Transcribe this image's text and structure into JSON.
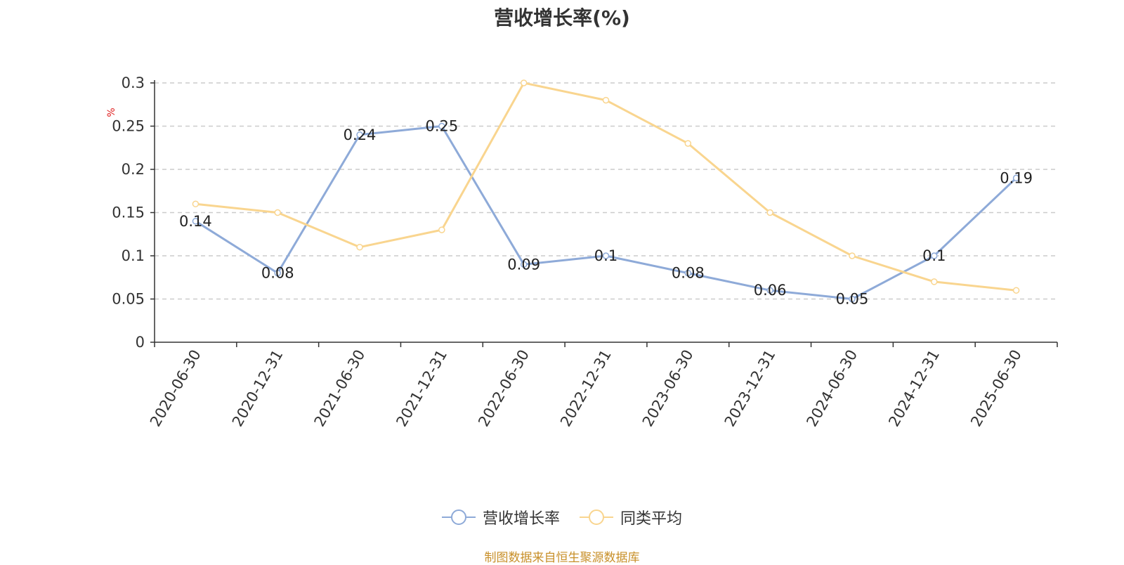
{
  "colors": {
    "series_1": "#8eaad8",
    "series_2": "#f9d58f",
    "unit": "#e02020",
    "note": "#c8902a"
  },
  "title": "营收增长率(%)",
  "source_note": "制图数据来自恒生聚源数据库",
  "chart_data": {
    "type": "line",
    "title": "营收增长率(%)",
    "ylabel": "%",
    "ylim": [
      0,
      0.3
    ],
    "yticks": [
      0,
      0.05,
      0.1,
      0.15,
      0.2,
      0.25,
      0.3
    ],
    "grid": true,
    "legend_position": "bottom",
    "categories": [
      "2020-06-30",
      "2020-12-31",
      "2021-06-30",
      "2021-12-31",
      "2022-06-30",
      "2022-12-31",
      "2023-06-30",
      "2023-12-31",
      "2024-06-30",
      "2024-12-31",
      "2025-06-30"
    ],
    "series": [
      {
        "name": "营收增长率",
        "values": [
          0.14,
          0.08,
          0.24,
          0.25,
          0.09,
          0.1,
          0.08,
          0.06,
          0.05,
          0.1,
          0.19
        ],
        "data_labels": true
      },
      {
        "name": "同类平均",
        "values": [
          0.16,
          0.15,
          0.11,
          0.13,
          0.3,
          0.28,
          0.23,
          0.15,
          0.1,
          0.07,
          0.06
        ],
        "data_labels": false
      }
    ]
  }
}
